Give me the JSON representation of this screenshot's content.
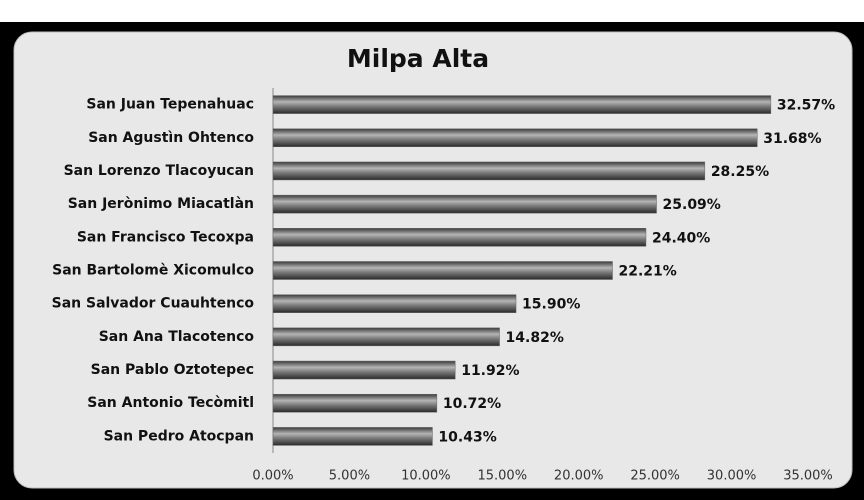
{
  "chart_data": {
    "type": "bar",
    "orientation": "horizontal",
    "title": "Milpa Alta",
    "categories": [
      "San Juan Tepenahuac",
      "San Agustìn Ohtenco",
      "San Lorenzo Tlacoyucan",
      "San Jerònimo Miacatlàn",
      "San Francisco Tecoxpa",
      "San Bartolomè Xicomulco",
      "San Salvador Cuauhtenco",
      "San Ana Tlacotenco",
      "San Pablo Oztotepec",
      "San Antonio Tecòmitl",
      "San Pedro Atocpan"
    ],
    "values": [
      32.57,
      31.68,
      28.25,
      25.09,
      24.4,
      22.21,
      15.9,
      14.82,
      11.92,
      10.72,
      10.43
    ],
    "value_labels": [
      "32.57%",
      "31.68%",
      "28.25%",
      "25.09%",
      "24.40%",
      "22.21%",
      "15.90%",
      "14.82%",
      "11.92%",
      "10.72%",
      "10.43%"
    ],
    "color": "#666666",
    "xlim": [
      0,
      35
    ],
    "xticks": [
      {
        "value": 0,
        "label": "0.00%"
      },
      {
        "value": 5,
        "label": "5.00%"
      },
      {
        "value": 10,
        "label": "10.00%"
      },
      {
        "value": 15,
        "label": "15.00%"
      },
      {
        "value": 20,
        "label": "20.00%"
      },
      {
        "value": 25,
        "label": "25.00%"
      },
      {
        "value": 30,
        "label": "30.00%"
      },
      {
        "value": 35,
        "label": "35.00%"
      }
    ],
    "grid": false
  }
}
